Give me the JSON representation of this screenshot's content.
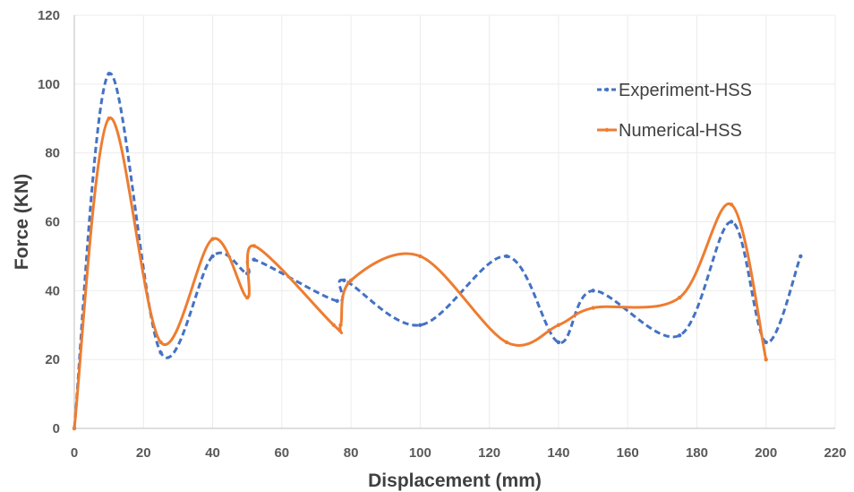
{
  "chart_data": {
    "type": "line",
    "title": "",
    "xlabel": "Displacement (mm)",
    "ylabel": "Force (KN)",
    "xlim": [
      0,
      220
    ],
    "ylim": [
      0,
      120
    ],
    "xticks": [
      0,
      20,
      40,
      60,
      80,
      100,
      120,
      140,
      160,
      180,
      200,
      220
    ],
    "yticks": [
      0,
      20,
      40,
      60,
      80,
      100,
      120
    ],
    "grid": true,
    "legend_position": "top-right",
    "series": [
      {
        "name": "Experiment-HSS",
        "color": "#4472C4",
        "style": "dashed",
        "x": [
          0,
          10,
          25,
          40,
          50,
          52,
          76,
          78,
          100,
          125,
          140,
          150,
          175,
          190,
          200,
          210
        ],
        "y": [
          0,
          103,
          22,
          50,
          45,
          49,
          37,
          43,
          30,
          50,
          25,
          40,
          27,
          60,
          25,
          50
        ]
      },
      {
        "name": "Numerical-HSS",
        "color": "#ED7D31",
        "style": "solid",
        "x": [
          0,
          10,
          25,
          40,
          50,
          52,
          75,
          77,
          80,
          100,
          125,
          140,
          150,
          175,
          190,
          200
        ],
        "y": [
          0,
          90,
          25,
          55,
          38,
          53,
          30,
          30,
          43,
          50,
          25,
          30,
          35,
          38,
          65,
          20
        ]
      }
    ]
  }
}
